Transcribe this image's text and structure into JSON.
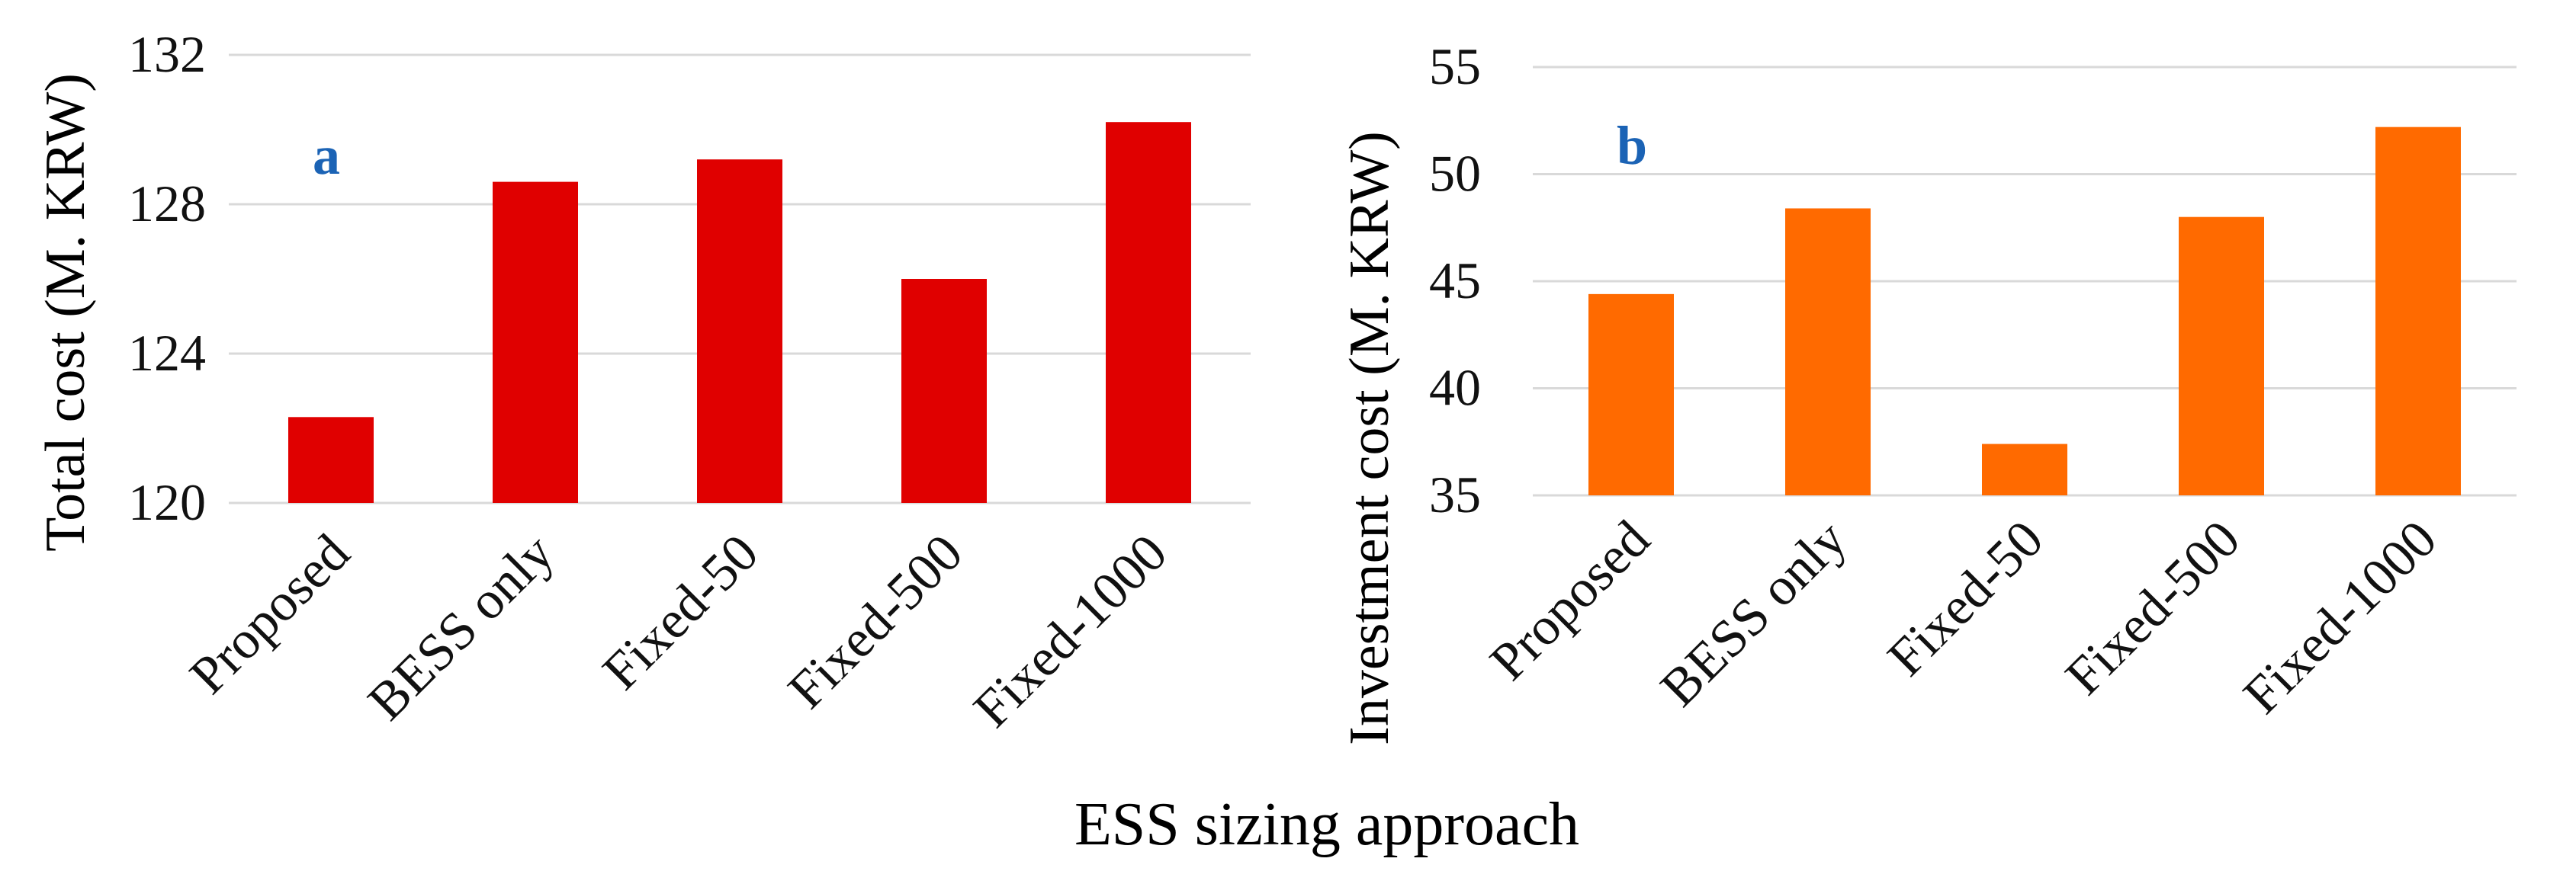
{
  "xlabel": "ESS sizing approach",
  "colors": {
    "panel_a": "#e00000",
    "panel_b": "#ff6a00",
    "panel_letter": "#1b63b5"
  },
  "chart_data": [
    {
      "type": "bar",
      "panel": "a",
      "categories": [
        "Proposed",
        "BESS only",
        "Fixed-50",
        "Fixed-500",
        "Fixed-1000"
      ],
      "values": [
        122.3,
        128.6,
        129.2,
        126.0,
        130.2
      ],
      "ylabel": "Total cost (M. KRW)",
      "ylim": [
        120,
        132
      ],
      "yticks": [
        120,
        124,
        128,
        132
      ],
      "grid": true
    },
    {
      "type": "bar",
      "panel": "b",
      "categories": [
        "Proposed",
        "BESS only",
        "Fixed-50",
        "Fixed-500",
        "Fixed-1000"
      ],
      "values": [
        44.4,
        48.4,
        37.4,
        48.0,
        52.2
      ],
      "ylabel": "Investment cost (M. KRW)",
      "ylim": [
        35,
        55
      ],
      "yticks": [
        35,
        40,
        45,
        50,
        55
      ],
      "grid": true
    }
  ]
}
